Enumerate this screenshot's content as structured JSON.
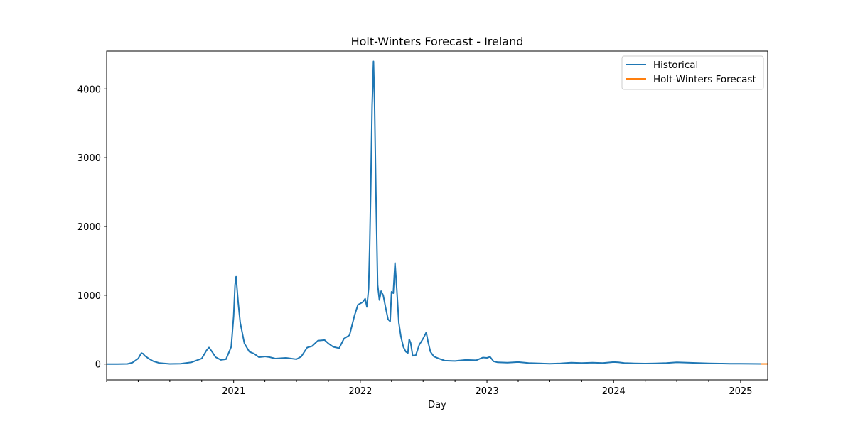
{
  "chart_data": {
    "type": "line",
    "title": "Holt-Winters Forecast - Ireland",
    "xlabel": "Day",
    "ylabel": "",
    "x_axis": {
      "type": "date",
      "range": [
        "2020-01-01",
        "2025-03-20"
      ],
      "major_ticks": [
        "2021-01-01",
        "2022-01-01",
        "2023-01-01",
        "2024-01-01",
        "2025-01-01"
      ],
      "major_tick_labels": [
        "2021",
        "2022",
        "2023",
        "2024",
        "2025"
      ],
      "minor_ticks_per_year": 3
    },
    "y_axis": {
      "range": [
        -230,
        4550
      ],
      "ticks": [
        0,
        1000,
        2000,
        3000,
        4000
      ],
      "tick_labels": [
        "0",
        "1000",
        "2000",
        "3000",
        "4000"
      ]
    },
    "grid": false,
    "legend": {
      "placement": "top-right"
    },
    "series": [
      {
        "name": "Historical",
        "color": "#1f77b4",
        "points": [
          [
            "2020-01-01",
            0
          ],
          [
            "2020-02-01",
            0
          ],
          [
            "2020-03-01",
            2
          ],
          [
            "2020-03-15",
            20
          ],
          [
            "2020-04-01",
            80
          ],
          [
            "2020-04-10",
            160
          ],
          [
            "2020-04-15",
            150
          ],
          [
            "2020-04-20",
            120
          ],
          [
            "2020-05-01",
            80
          ],
          [
            "2020-05-15",
            40
          ],
          [
            "2020-06-01",
            15
          ],
          [
            "2020-07-01",
            2
          ],
          [
            "2020-08-01",
            5
          ],
          [
            "2020-09-01",
            25
          ],
          [
            "2020-10-01",
            80
          ],
          [
            "2020-10-15",
            200
          ],
          [
            "2020-10-22",
            240
          ],
          [
            "2020-11-01",
            170
          ],
          [
            "2020-11-10",
            100
          ],
          [
            "2020-11-25",
            60
          ],
          [
            "2020-12-10",
            70
          ],
          [
            "2020-12-25",
            250
          ],
          [
            "2021-01-01",
            700
          ],
          [
            "2021-01-05",
            1150
          ],
          [
            "2021-01-08",
            1270
          ],
          [
            "2021-01-14",
            900
          ],
          [
            "2021-01-20",
            600
          ],
          [
            "2021-02-01",
            300
          ],
          [
            "2021-02-15",
            180
          ],
          [
            "2021-03-01",
            150
          ],
          [
            "2021-03-15",
            100
          ],
          [
            "2021-04-01",
            110
          ],
          [
            "2021-04-15",
            100
          ],
          [
            "2021-05-01",
            80
          ],
          [
            "2021-06-01",
            90
          ],
          [
            "2021-07-01",
            70
          ],
          [
            "2021-07-15",
            110
          ],
          [
            "2021-08-01",
            240
          ],
          [
            "2021-08-15",
            260
          ],
          [
            "2021-09-01",
            340
          ],
          [
            "2021-09-20",
            350
          ],
          [
            "2021-10-01",
            300
          ],
          [
            "2021-10-15",
            250
          ],
          [
            "2021-11-01",
            230
          ],
          [
            "2021-11-15",
            370
          ],
          [
            "2021-12-01",
            420
          ],
          [
            "2021-12-15",
            700
          ],
          [
            "2021-12-25",
            860
          ],
          [
            "2022-01-01",
            880
          ],
          [
            "2022-01-08",
            900
          ],
          [
            "2022-01-15",
            950
          ],
          [
            "2022-01-20",
            830
          ],
          [
            "2022-01-25",
            1100
          ],
          [
            "2022-01-28",
            1700
          ],
          [
            "2022-01-31",
            2500
          ],
          [
            "2022-02-04",
            3750
          ],
          [
            "2022-02-08",
            4400
          ],
          [
            "2022-02-11",
            3800
          ],
          [
            "2022-02-15",
            2500
          ],
          [
            "2022-02-20",
            1150
          ],
          [
            "2022-02-25",
            930
          ],
          [
            "2022-03-02",
            1060
          ],
          [
            "2022-03-08",
            1000
          ],
          [
            "2022-03-15",
            820
          ],
          [
            "2022-03-22",
            650
          ],
          [
            "2022-03-28",
            620
          ],
          [
            "2022-04-01",
            1050
          ],
          [
            "2022-04-06",
            1030
          ],
          [
            "2022-04-11",
            1470
          ],
          [
            "2022-04-16",
            1100
          ],
          [
            "2022-04-22",
            600
          ],
          [
            "2022-04-28",
            400
          ],
          [
            "2022-05-05",
            250
          ],
          [
            "2022-05-12",
            180
          ],
          [
            "2022-05-18",
            160
          ],
          [
            "2022-05-22",
            360
          ],
          [
            "2022-05-26",
            310
          ],
          [
            "2022-06-01",
            120
          ],
          [
            "2022-06-10",
            130
          ],
          [
            "2022-06-20",
            280
          ],
          [
            "2022-07-01",
            370
          ],
          [
            "2022-07-10",
            460
          ],
          [
            "2022-07-15",
            330
          ],
          [
            "2022-07-22",
            180
          ],
          [
            "2022-08-01",
            110
          ],
          [
            "2022-08-15",
            80
          ],
          [
            "2022-09-01",
            50
          ],
          [
            "2022-10-01",
            45
          ],
          [
            "2022-11-01",
            60
          ],
          [
            "2022-12-01",
            55
          ],
          [
            "2022-12-20",
            95
          ],
          [
            "2023-01-01",
            90
          ],
          [
            "2023-01-10",
            105
          ],
          [
            "2023-01-20",
            40
          ],
          [
            "2023-02-01",
            25
          ],
          [
            "2023-03-01",
            20
          ],
          [
            "2023-04-01",
            30
          ],
          [
            "2023-05-01",
            15
          ],
          [
            "2023-06-01",
            10
          ],
          [
            "2023-07-01",
            5
          ],
          [
            "2023-08-01",
            10
          ],
          [
            "2023-09-01",
            20
          ],
          [
            "2023-10-01",
            15
          ],
          [
            "2023-11-01",
            20
          ],
          [
            "2023-12-01",
            15
          ],
          [
            "2024-01-01",
            30
          ],
          [
            "2024-01-15",
            25
          ],
          [
            "2024-02-01",
            15
          ],
          [
            "2024-03-01",
            10
          ],
          [
            "2024-04-01",
            8
          ],
          [
            "2024-05-01",
            10
          ],
          [
            "2024-06-01",
            15
          ],
          [
            "2024-07-01",
            25
          ],
          [
            "2024-08-01",
            20
          ],
          [
            "2024-09-01",
            15
          ],
          [
            "2024-10-01",
            10
          ],
          [
            "2024-11-01",
            8
          ],
          [
            "2024-12-01",
            5
          ],
          [
            "2025-01-01",
            5
          ],
          [
            "2025-02-01",
            3
          ],
          [
            "2025-03-01",
            2
          ]
        ]
      },
      {
        "name": "Holt-Winters Forecast",
        "color": "#ff7f0e",
        "points": [
          [
            "2025-03-01",
            2
          ],
          [
            "2025-03-20",
            2
          ]
        ]
      }
    ]
  }
}
